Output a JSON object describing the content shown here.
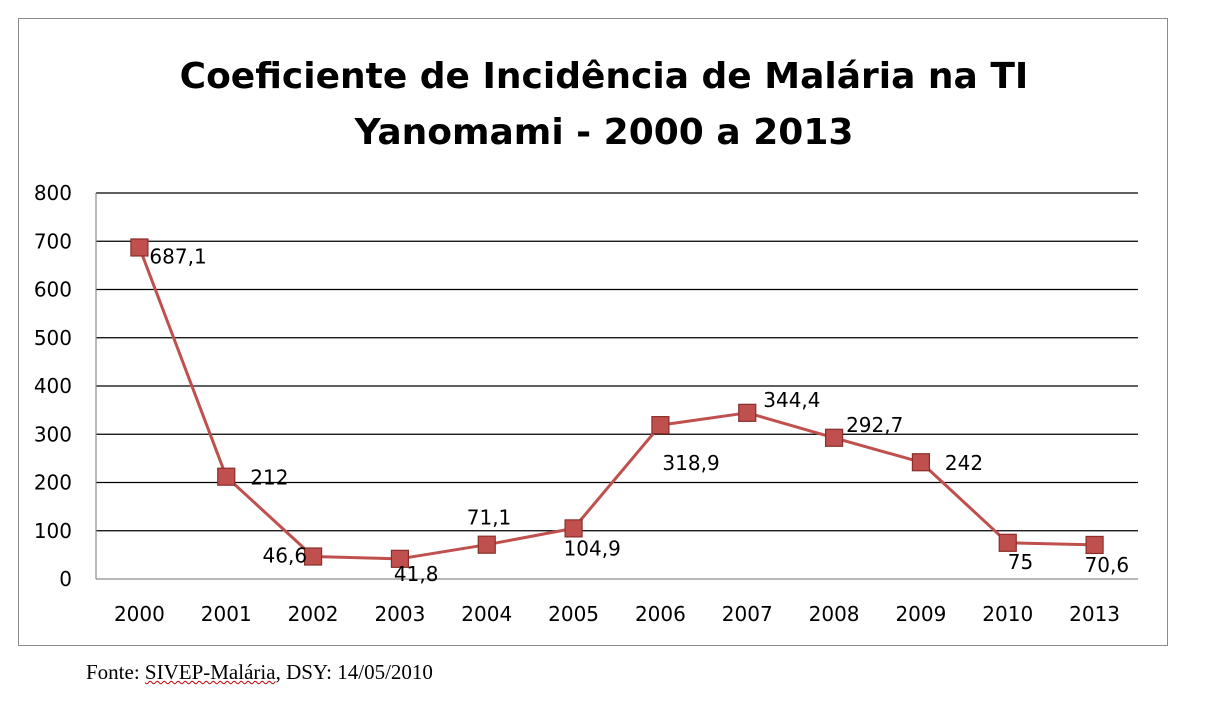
{
  "chart_data": {
    "type": "line",
    "title_line1": "Coeficiente de Incidência de Malária na TI",
    "title_line2": "Yanomami - 2000 a 2013",
    "categories": [
      "2000",
      "2001",
      "2002",
      "2003",
      "2004",
      "2005",
      "2006",
      "2007",
      "2008",
      "2009",
      "2010",
      "2013"
    ],
    "values": [
      687.1,
      212,
      46.6,
      41.8,
      71.1,
      104.9,
      318.9,
      344.4,
      292.7,
      242,
      75,
      70.6
    ],
    "data_labels": [
      "687,1",
      "212",
      "46,6",
      "41,8",
      "71,1",
      "104,9",
      "318,9",
      "344,4",
      "292,7",
      "242",
      "75",
      "70,6"
    ],
    "ylim": [
      0,
      800
    ],
    "yticks": [
      0,
      100,
      200,
      300,
      400,
      500,
      600,
      700,
      800
    ],
    "xlabel": "",
    "ylabel": "",
    "grid": true,
    "legend": "none",
    "series_color": "#c0504d",
    "marker_color": "#c0504d",
    "marker_edge": "#8b2e2b"
  },
  "source": {
    "prefix": "Fonte: ",
    "underlined": "SIVEP-Malária",
    "suffix": ", DSY: 14/05/2010"
  }
}
